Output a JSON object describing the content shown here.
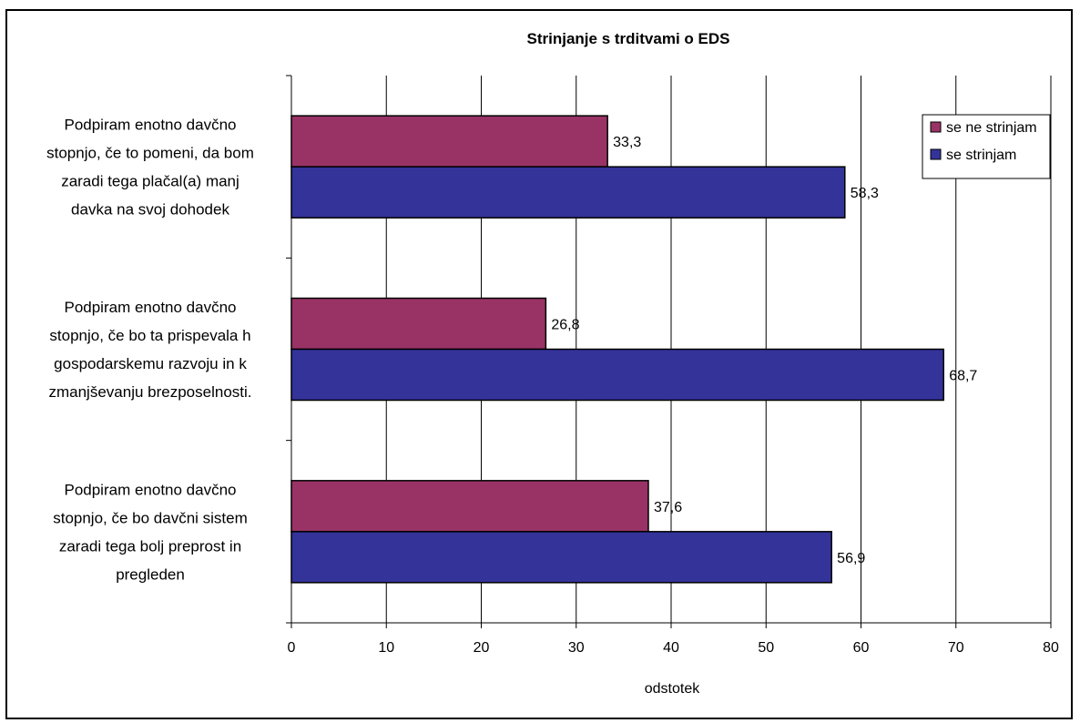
{
  "chart_data": {
    "type": "bar",
    "orientation": "horizontal",
    "title": "Strinjanje s trditvami o EDS",
    "xlabel": "odstotek",
    "ylabel": "",
    "xlim": [
      0,
      80
    ],
    "xticks": [
      "0",
      "10",
      "20",
      "30",
      "40",
      "50",
      "60",
      "70",
      "80"
    ],
    "grid": true,
    "legend_position": "top-right",
    "categories": [
      [
        "Podpiram enotno davčno",
        "stopnjo, če to pomeni, da bom",
        "zaradi tega plačal(a) manj",
        "davka na svoj dohodek"
      ],
      [
        "Podpiram enotno davčno",
        "stopnjo, če bo ta prispevala h",
        "gospodarskemu razvoju in k",
        "zmanjševanju brezposelnosti."
      ],
      [
        "Podpiram enotno davčno",
        "stopnjo, če bo davčni sistem",
        "zaradi tega bolj preprost in",
        "pregleden"
      ]
    ],
    "series": [
      {
        "name": "se ne strinjam",
        "color": "#993366",
        "values": [
          33.3,
          26.8,
          37.6
        ],
        "labels": [
          "33,3",
          "26,8",
          "37,6"
        ]
      },
      {
        "name": "se strinjam",
        "color": "#333399",
        "values": [
          58.3,
          68.7,
          56.9
        ],
        "labels": [
          "58,3",
          "68,7",
          "56,9"
        ]
      }
    ]
  }
}
